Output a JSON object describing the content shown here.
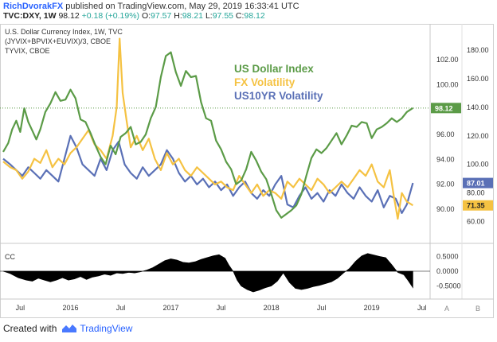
{
  "header": {
    "author": "RichDvorakFX",
    "published_text": "published on TradingView.com, May 29, 2019 16:33:41 UTC",
    "symbol": "TVC:DXY, 1W",
    "last": "98.12",
    "change": "+0.18 (+0.19%)",
    "o_label": "O:",
    "o_value": "97.57",
    "h_label": "H:",
    "h_value": "98.21",
    "l_label": "L:",
    "l_value": "97.55",
    "c_label": "C:",
    "c_value": "98.12"
  },
  "footer": {
    "created_with": "Created with",
    "brand": "TradingView"
  },
  "chart_data": [
    {
      "type": "line",
      "legend_lines": [
        "U.S. Dollar Currency Index, 1W, TVC",
        "(JYVIX+BPVIX+EUVIX)/3, CBOE",
        "TYVIX, CBOE"
      ],
      "big_legend": [
        {
          "name": "US Dollar Index",
          "color": "#5b9b47"
        },
        {
          "name": "FX Volatility",
          "color": "#f5c242"
        },
        {
          "name": "US10YR Volatility",
          "color": "#5a70b6"
        }
      ],
      "x_ticks": [
        "Jul",
        "2016",
        "Jul",
        "2017",
        "Jul",
        "2018",
        "Jul",
        "2019",
        "Jul"
      ],
      "x_tick_pos": [
        2015.5,
        2016.0,
        2016.5,
        2017.0,
        2017.5,
        2018.0,
        2018.5,
        2019.0,
        2019.5
      ],
      "xlim": [
        2015.33,
        2019.55
      ],
      "dxy_axis": {
        "ylim": [
          87.5,
          104.5
        ],
        "ticks": [
          "102.00",
          "100.00",
          "98.00",
          "96.00",
          "94.00",
          "92.00",
          "90.00"
        ],
        "tick_values": [
          102,
          100,
          98,
          96,
          94,
          92,
          90
        ]
      },
      "vol_axis": {
        "ylim": [
          47,
          195
        ],
        "ticks": [
          "180.00",
          "160.00",
          "140.00",
          "120.00",
          "100.00",
          "80.00",
          "60.00"
        ],
        "tick_values": [
          180,
          160,
          140,
          120,
          100,
          80,
          60
        ]
      },
      "grid": false,
      "series": [
        {
          "key": "dxy",
          "axis": "dxy",
          "color": "#5b9b47",
          "last_label": "98.12",
          "x": [
            2015.33,
            2015.38,
            2015.42,
            2015.46,
            2015.5,
            2015.54,
            2015.58,
            2015.62,
            2015.66,
            2015.7,
            2015.75,
            2015.8,
            2015.85,
            2015.9,
            2015.95,
            2016.0,
            2016.05,
            2016.1,
            2016.15,
            2016.2,
            2016.25,
            2016.3,
            2016.35,
            2016.4,
            2016.45,
            2016.5,
            2016.55,
            2016.6,
            2016.65,
            2016.7,
            2016.75,
            2016.8,
            2016.85,
            2016.9,
            2016.95,
            2017.0,
            2017.05,
            2017.1,
            2017.15,
            2017.2,
            2017.25,
            2017.3,
            2017.35,
            2017.4,
            2017.45,
            2017.5,
            2017.55,
            2017.6,
            2017.65,
            2017.7,
            2017.75,
            2017.8,
            2017.85,
            2017.9,
            2017.95,
            2018.0,
            2018.05,
            2018.1,
            2018.15,
            2018.2,
            2018.25,
            2018.3,
            2018.35,
            2018.4,
            2018.45,
            2018.5,
            2018.55,
            2018.6,
            2018.65,
            2018.7,
            2018.75,
            2018.8,
            2018.85,
            2018.9,
            2018.95,
            2019.0,
            2019.05,
            2019.1,
            2019.15,
            2019.2,
            2019.25,
            2019.3,
            2019.35,
            2019.41
          ],
          "values": [
            94.6,
            95.3,
            96.4,
            97.1,
            96.2,
            98.1,
            97.0,
            96.3,
            95.6,
            96.4,
            97.8,
            98.5,
            99.4,
            98.7,
            98.8,
            99.6,
            98.9,
            97.2,
            97.0,
            96.1,
            95.1,
            94.2,
            93.6,
            95.1,
            94.4,
            95.8,
            96.1,
            96.6,
            95.2,
            95.4,
            96.0,
            97.3,
            98.2,
            100.6,
            102.3,
            102.6,
            101.0,
            99.9,
            101.1,
            100.6,
            100.7,
            98.6,
            97.3,
            97.1,
            95.5,
            94.8,
            93.8,
            93.2,
            92.0,
            92.3,
            93.2,
            94.6,
            93.9,
            93.0,
            92.4,
            91.2,
            89.9,
            89.3,
            89.6,
            89.9,
            90.3,
            91.2,
            92.7,
            94.1,
            94.8,
            94.5,
            94.9,
            95.5,
            96.1,
            95.2,
            95.9,
            96.7,
            96.6,
            97.0,
            96.9,
            95.7,
            96.4,
            96.6,
            96.9,
            97.3,
            97.0,
            97.3,
            97.8,
            98.12
          ]
        },
        {
          "key": "fxvol",
          "axis": "vol",
          "color": "#f5c242",
          "last_label": "71.35",
          "x": [
            2015.33,
            2015.4,
            2015.46,
            2015.52,
            2015.58,
            2015.64,
            2015.7,
            2015.76,
            2015.82,
            2015.88,
            2015.94,
            2016.0,
            2016.06,
            2016.12,
            2016.18,
            2016.24,
            2016.3,
            2016.36,
            2016.42,
            2016.46,
            2016.49,
            2016.52,
            2016.56,
            2016.6,
            2016.66,
            2016.72,
            2016.78,
            2016.84,
            2016.9,
            2016.96,
            2017.02,
            2017.08,
            2017.14,
            2017.2,
            2017.26,
            2017.32,
            2017.38,
            2017.44,
            2017.5,
            2017.56,
            2017.62,
            2017.68,
            2017.74,
            2017.8,
            2017.86,
            2017.92,
            2017.98,
            2018.04,
            2018.1,
            2018.16,
            2018.22,
            2018.28,
            2018.34,
            2018.4,
            2018.46,
            2018.52,
            2018.58,
            2018.64,
            2018.7,
            2018.76,
            2018.82,
            2018.88,
            2018.94,
            2019.0,
            2019.06,
            2019.12,
            2019.18,
            2019.22,
            2019.26,
            2019.3,
            2019.35,
            2019.41
          ],
          "values": [
            102,
            98,
            96,
            90,
            95,
            104,
            101,
            110,
            98,
            104,
            100,
            108,
            112,
            118,
            124,
            114,
            110,
            104,
            120,
            140,
            188,
            150,
            130,
            112,
            120,
            110,
            118,
            104,
            96,
            108,
            100,
            104,
            96,
            92,
            98,
            94,
            90,
            86,
            88,
            84,
            82,
            92,
            86,
            80,
            86,
            78,
            82,
            80,
            76,
            88,
            84,
            90,
            86,
            82,
            90,
            86,
            80,
            84,
            88,
            84,
            90,
            96,
            92,
            100,
            88,
            84,
            96,
            78,
            62,
            80,
            74,
            71.35
          ]
        },
        {
          "key": "tyvix",
          "axis": "vol",
          "color": "#5a70b6",
          "last_label": "87.01",
          "x": [
            2015.33,
            2015.4,
            2015.46,
            2015.52,
            2015.58,
            2015.64,
            2015.7,
            2015.76,
            2015.82,
            2015.88,
            2015.94,
            2016.0,
            2016.06,
            2016.12,
            2016.18,
            2016.24,
            2016.3,
            2016.36,
            2016.42,
            2016.48,
            2016.54,
            2016.6,
            2016.66,
            2016.72,
            2016.78,
            2016.84,
            2016.9,
            2016.96,
            2017.02,
            2017.08,
            2017.14,
            2017.2,
            2017.26,
            2017.32,
            2017.38,
            2017.44,
            2017.5,
            2017.56,
            2017.62,
            2017.68,
            2017.74,
            2017.8,
            2017.86,
            2017.92,
            2017.98,
            2018.04,
            2018.1,
            2018.16,
            2018.22,
            2018.28,
            2018.34,
            2018.4,
            2018.46,
            2018.52,
            2018.58,
            2018.64,
            2018.7,
            2018.76,
            2018.82,
            2018.88,
            2018.94,
            2019.0,
            2019.06,
            2019.12,
            2019.18,
            2019.24,
            2019.3,
            2019.35,
            2019.41
          ],
          "values": [
            104,
            100,
            96,
            92,
            98,
            94,
            90,
            96,
            92,
            88,
            104,
            120,
            112,
            100,
            96,
            92,
            104,
            96,
            110,
            116,
            100,
            94,
            90,
            98,
            92,
            96,
            100,
            110,
            104,
            94,
            88,
            92,
            86,
            90,
            84,
            88,
            82,
            86,
            78,
            84,
            88,
            80,
            76,
            82,
            78,
            86,
            92,
            72,
            70,
            78,
            84,
            76,
            80,
            74,
            82,
            78,
            86,
            80,
            76,
            84,
            78,
            74,
            82,
            70,
            78,
            76,
            66,
            72,
            87.01
          ]
        }
      ]
    },
    {
      "type": "area",
      "label": "CC",
      "ylim": [
        -0.78,
        0.78
      ],
      "ticks": [
        "0.5000",
        "0.0000",
        "-0.5000"
      ],
      "tick_values": [
        0.5,
        0.0,
        -0.5
      ],
      "x": [
        2015.33,
        2015.4,
        2015.48,
        2015.56,
        2015.62,
        2015.68,
        2015.74,
        2015.8,
        2015.86,
        2015.92,
        2015.98,
        2016.04,
        2016.1,
        2016.16,
        2016.22,
        2016.28,
        2016.34,
        2016.4,
        2016.46,
        2016.52,
        2016.58,
        2016.64,
        2016.7,
        2016.76,
        2016.82,
        2016.88,
        2016.94,
        2017.0,
        2017.06,
        2017.12,
        2017.18,
        2017.24,
        2017.3,
        2017.36,
        2017.42,
        2017.48,
        2017.54,
        2017.58,
        2017.62,
        2017.66,
        2017.7,
        2017.76,
        2017.82,
        2017.88,
        2017.94,
        2018.0,
        2018.06,
        2018.12,
        2018.18,
        2018.24,
        2018.3,
        2018.36,
        2018.42,
        2018.48,
        2018.54,
        2018.6,
        2018.66,
        2018.72,
        2018.78,
        2018.84,
        2018.9,
        2018.96,
        2019.02,
        2019.08,
        2019.14,
        2019.2,
        2019.26,
        2019.32,
        2019.36,
        2019.41
      ],
      "values": [
        0.0,
        -0.08,
        -0.22,
        -0.3,
        -0.34,
        -0.24,
        -0.3,
        -0.36,
        -0.3,
        -0.22,
        -0.3,
        -0.26,
        -0.18,
        -0.28,
        -0.2,
        -0.16,
        -0.1,
        -0.14,
        -0.06,
        -0.08,
        -0.04,
        -0.06,
        -0.02,
        0.04,
        0.12,
        0.24,
        0.36,
        0.42,
        0.38,
        0.3,
        0.28,
        0.32,
        0.4,
        0.46,
        0.52,
        0.56,
        0.44,
        0.2,
        0.0,
        -0.3,
        -0.5,
        -0.62,
        -0.7,
        -0.64,
        -0.56,
        -0.5,
        -0.34,
        -0.06,
        -0.38,
        -0.58,
        -0.62,
        -0.58,
        -0.52,
        -0.48,
        -0.42,
        -0.36,
        -0.24,
        -0.06,
        0.1,
        0.34,
        0.52,
        0.6,
        0.55,
        0.5,
        0.46,
        0.22,
        -0.04,
        -0.12,
        -0.3,
        -0.56
      ]
    }
  ]
}
